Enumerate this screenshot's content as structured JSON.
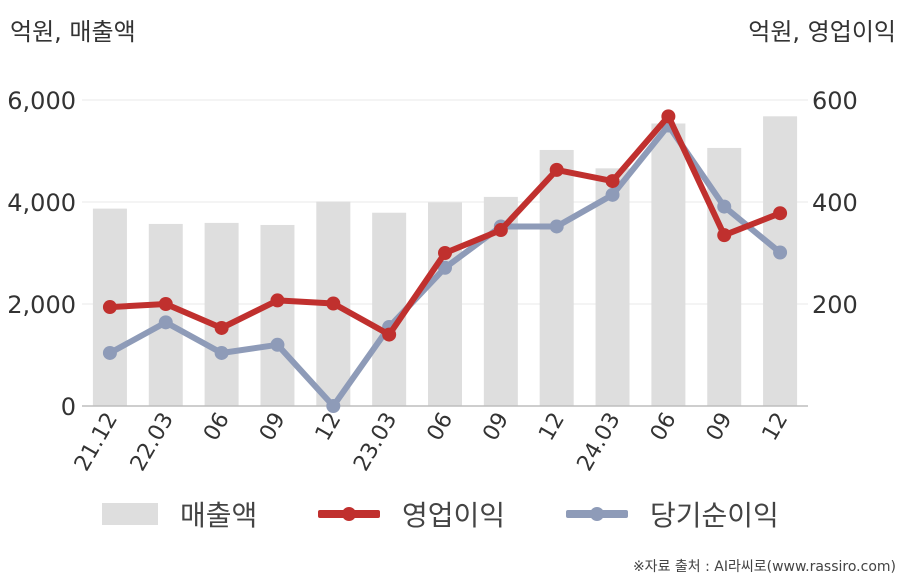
{
  "units": {
    "left": "억원, 매출액",
    "right": "억원, 영업이익"
  },
  "source": "※자료 출처 : AI라씨로(www.rassiro.com)",
  "colors": {
    "revenue": "#dedede",
    "operating_profit": "#c0302e",
    "net_income": "#8e9bb8",
    "grid": "#e8e8e8",
    "axis": "#bdbdbd",
    "tick_text": "#333333"
  },
  "chart_data": {
    "type": "bar",
    "categories": [
      "21.12",
      "22.03",
      "06",
      "09",
      "12",
      "23.03",
      "06",
      "09",
      "12",
      "24.03",
      "06",
      "09",
      "12"
    ],
    "left_axis": {
      "ticks": [
        "0",
        "2,000",
        "4,000",
        "6,000"
      ],
      "tick_values": [
        0,
        2000,
        4000,
        6000
      ],
      "ylim": [
        0,
        6000
      ]
    },
    "right_axis": {
      "ticks": [
        "200",
        "400",
        "600"
      ],
      "tick_values": [
        200,
        400,
        600
      ],
      "ylim": [
        0,
        600
      ]
    },
    "grid": true,
    "legend_position": "bottom",
    "series": [
      {
        "name": "매출액",
        "type": "bar",
        "axis": "left",
        "values": [
          3870,
          3570,
          3590,
          3550,
          4010,
          3790,
          3990,
          4100,
          5020,
          4660,
          5540,
          5060,
          5680
        ]
      },
      {
        "name": "영업이익",
        "type": "line",
        "axis": "right",
        "values": [
          194,
          200,
          153,
          207,
          201,
          140,
          300,
          345,
          463,
          441,
          568,
          335,
          378
        ]
      },
      {
        "name": "당기순이익",
        "type": "line",
        "axis": "right",
        "values": [
          104,
          164,
          104,
          120,
          0,
          155,
          271,
          352,
          352,
          414,
          550,
          391,
          301
        ]
      }
    ]
  }
}
